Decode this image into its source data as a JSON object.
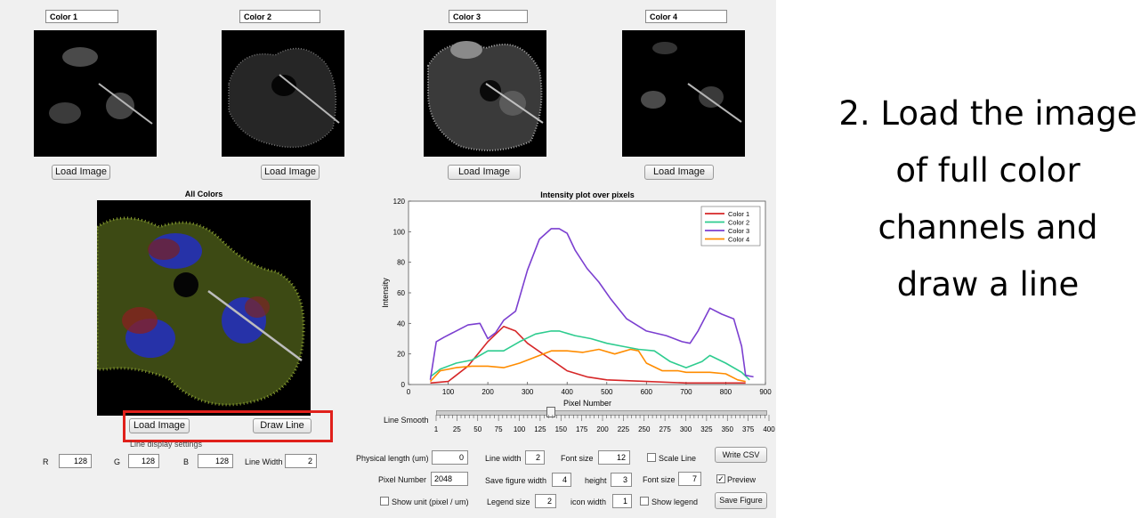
{
  "channels": [
    {
      "title": "Color 1",
      "button": "Load Image"
    },
    {
      "title": "Color 2",
      "button": "Load Image"
    },
    {
      "title": "Color 3",
      "button": "Load Image"
    },
    {
      "title": "Color 4",
      "button": "Load Image"
    }
  ],
  "merged": {
    "title": "All Colors",
    "load_button": "Load Image",
    "draw_button": "Draw Line"
  },
  "line_display": {
    "label": "Line display settings",
    "r_label": "R",
    "r": "128",
    "g_label": "G",
    "g": "128",
    "b_label": "B",
    "b": "128",
    "width_label": "Line Width",
    "width": "2"
  },
  "smooth": {
    "label": "Line Smooth",
    "value": 150,
    "ticks": [
      "1",
      "25",
      "50",
      "75",
      "100",
      "125",
      "150",
      "175",
      "200",
      "225",
      "250",
      "275",
      "300",
      "325",
      "350",
      "375",
      "400"
    ]
  },
  "settings": {
    "physical_length_label": "Physical length (um)",
    "physical_length": "0",
    "line_width_label": "Line width",
    "line_width": "2",
    "font_size_label": "Font size",
    "font_size": "12",
    "scale_line_label": "Scale Line",
    "scale_line_checked": false,
    "write_csv": "Write CSV",
    "pixel_number_label": "Pixel Number",
    "pixel_number": "2048",
    "save_width_label": "Save figure width",
    "save_width": "4",
    "height_label": "height",
    "height": "3",
    "font_size2_label": "Font size",
    "font_size2": "7",
    "preview_label": "Preview",
    "preview_checked": true,
    "show_unit_label": "Show unit (pixel / um)",
    "show_unit_checked": false,
    "legend_size_label": "Legend size",
    "legend_size": "2",
    "icon_width_label": "icon width",
    "icon_width": "1",
    "show_legend_label": "Show legend",
    "show_legend_checked": false,
    "save_figure": "Save Figure"
  },
  "instruction": "2. Load the image of full color channels and draw a line",
  "chart_data": {
    "type": "line",
    "title": "Intensity plot over pixels",
    "xlabel": "Pixel Number",
    "ylabel": "Intensity",
    "xlim": [
      0,
      900
    ],
    "ylim": [
      0,
      120
    ],
    "xticks": [
      0,
      100,
      200,
      300,
      400,
      500,
      600,
      700,
      800,
      900
    ],
    "yticks": [
      0,
      20,
      40,
      60,
      80,
      100,
      120
    ],
    "legend_position": "top-right",
    "series": [
      {
        "name": "Color 1",
        "color": "#d62728",
        "x": [
          55,
          100,
          150,
          200,
          240,
          270,
          300,
          350,
          400,
          450,
          500,
          600,
          700,
          800,
          850
        ],
        "y": [
          1,
          2,
          12,
          28,
          38,
          35,
          27,
          18,
          9,
          5,
          3,
          2,
          1,
          1,
          1
        ]
      },
      {
        "name": "Color 2",
        "color": "#2ecc8f",
        "x": [
          55,
          80,
          120,
          160,
          200,
          240,
          280,
          320,
          360,
          380,
          420,
          460,
          500,
          540,
          580,
          620,
          660,
          700,
          740,
          760,
          800,
          840,
          860
        ],
        "y": [
          5,
          10,
          14,
          16,
          22,
          22,
          28,
          33,
          35,
          35,
          32,
          30,
          27,
          25,
          23,
          22,
          15,
          11,
          15,
          19,
          14,
          8,
          3
        ]
      },
      {
        "name": "Color 3",
        "color": "#7b3fd0",
        "x": [
          55,
          70,
          90,
          120,
          150,
          180,
          200,
          220,
          240,
          270,
          300,
          330,
          360,
          380,
          400,
          420,
          450,
          480,
          510,
          550,
          600,
          650,
          690,
          710,
          730,
          760,
          790,
          820,
          840,
          850,
          870
        ],
        "y": [
          3,
          28,
          31,
          35,
          39,
          40,
          30,
          34,
          42,
          48,
          75,
          95,
          102,
          102,
          99,
          88,
          76,
          67,
          56,
          43,
          35,
          32,
          28,
          27,
          35,
          50,
          46,
          43,
          25,
          6,
          5
        ]
      },
      {
        "name": "Color 4",
        "color": "#ff8c00",
        "x": [
          55,
          80,
          120,
          160,
          200,
          240,
          280,
          320,
          360,
          400,
          440,
          480,
          520,
          560,
          580,
          600,
          640,
          680,
          700,
          760,
          800,
          830,
          850
        ],
        "y": [
          2,
          9,
          11,
          12,
          12,
          11,
          14,
          18,
          22,
          22,
          21,
          23,
          20,
          23,
          22,
          14,
          9,
          9,
          8,
          8,
          7,
          3,
          2
        ]
      }
    ]
  }
}
